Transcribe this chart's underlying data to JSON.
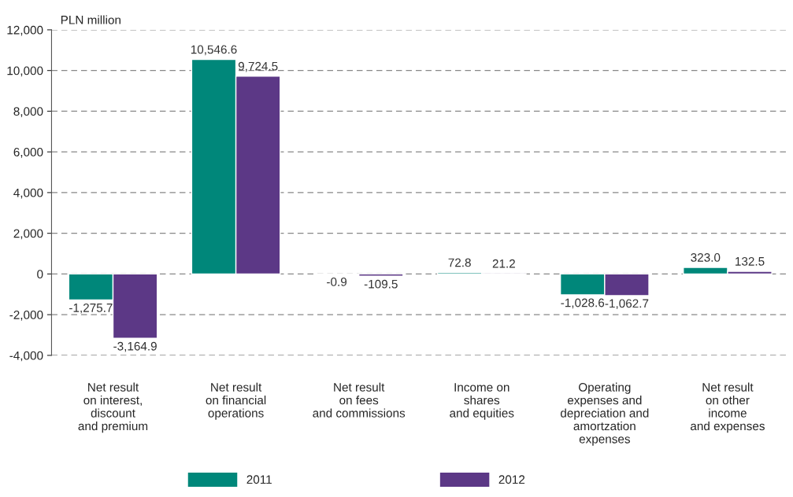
{
  "chart_data": {
    "type": "bar",
    "ylabel": "PLN million",
    "categories": [
      "Net result\non interest,\ndiscount\nand premium",
      "Net result\non financial\noperations",
      "Net result\non fees\nand commissions",
      "Income on\nshares\nand equities",
      "Operating\nexpenses and\ndepreciation and\namortzation\nexpenses",
      "Net result\non other\nincome\nand expenses"
    ],
    "series": [
      {
        "name": "2011",
        "color": "#00877a",
        "values": [
          -1275.7,
          10546.6,
          -0.9,
          72.8,
          -1028.6,
          323.0
        ],
        "value_labels": [
          "-1,275.7",
          "10,546.6",
          "-0.9",
          "72.8",
          "-1,028.6",
          "323.0"
        ]
      },
      {
        "name": "2012",
        "color": "#5c3886",
        "values": [
          -3164.9,
          9724.5,
          -109.5,
          21.2,
          -1062.7,
          132.5
        ],
        "value_labels": [
          "-3,164.9",
          "9,724.5",
          "-109.5",
          "21.2",
          "-1,062.7",
          "132.5"
        ]
      }
    ],
    "ylim": [
      -4000,
      12000
    ],
    "yticks": [
      {
        "value": -4000,
        "label": "-4,000"
      },
      {
        "value": -2000,
        "label": "-2,000"
      },
      0,
      {
        "value": 2000,
        "label": "2,000"
      },
      {
        "value": 4000,
        "label": "4,000"
      },
      {
        "value": 6000,
        "label": "6,000"
      },
      {
        "value": 8000,
        "label": "8,000"
      },
      {
        "value": 10000,
        "label": "10,000"
      },
      {
        "value": 12000,
        "label": "12,000"
      }
    ],
    "grid": "y",
    "legend": "bottom"
  }
}
